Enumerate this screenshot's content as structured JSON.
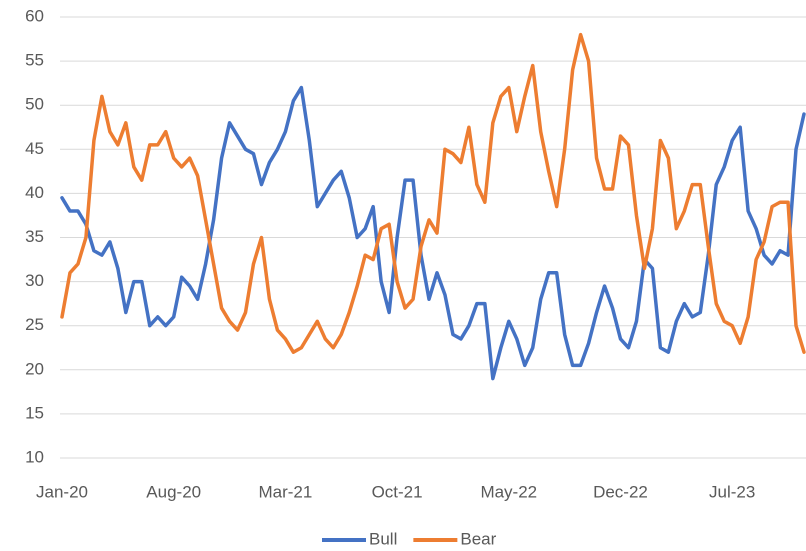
{
  "chart_data": {
    "type": "line",
    "categories": [
      "Jan-20",
      null,
      null,
      null,
      null,
      null,
      null,
      null,
      null,
      null,
      null,
      null,
      null,
      null,
      "Aug-20",
      null,
      null,
      null,
      null,
      null,
      null,
      null,
      null,
      null,
      null,
      null,
      null,
      null,
      "Mar-21",
      null,
      null,
      null,
      null,
      null,
      null,
      null,
      null,
      null,
      null,
      null,
      null,
      null,
      "Oct-21",
      null,
      null,
      null,
      null,
      null,
      null,
      null,
      null,
      null,
      null,
      null,
      null,
      null,
      "May-22",
      null,
      null,
      null,
      null,
      null,
      null,
      null,
      null,
      null,
      null,
      null,
      null,
      null,
      "Dec-22",
      null,
      null,
      null,
      null,
      null,
      null,
      null,
      null,
      null,
      null,
      null,
      null,
      null,
      "Jul-23",
      null,
      null,
      null,
      null,
      null,
      null,
      null,
      null,
      null
    ],
    "series": [
      {
        "name": "Bull",
        "color": "#4472c4",
        "values": [
          39.5,
          38,
          38,
          36.5,
          33.5,
          33,
          34.5,
          31.5,
          26.5,
          30,
          30,
          25,
          26,
          25,
          26,
          30.5,
          29.5,
          28,
          32,
          37,
          44,
          48,
          46.5,
          45,
          44.5,
          41,
          43.5,
          45,
          47,
          50.5,
          52,
          46,
          38.5,
          40,
          41.5,
          42.5,
          39.5,
          35,
          36,
          38.5,
          30,
          26.5,
          35,
          41.5,
          41.5,
          33,
          28,
          31,
          28.5,
          24,
          23.5,
          25,
          27.5,
          27.5,
          19,
          22.5,
          25.5,
          23.5,
          20.5,
          22.5,
          28,
          31,
          31,
          24,
          20.5,
          20.5,
          23,
          26.5,
          29.5,
          27,
          23.5,
          22.5,
          25.5,
          32.5,
          31.5,
          22.5,
          22,
          25.5,
          27.5,
          26,
          26.5,
          33,
          41,
          43,
          46,
          47.5,
          38,
          36,
          33,
          32,
          33.5,
          33,
          45,
          49
        ]
      },
      {
        "name": "Bear",
        "color": "#ed7d31",
        "values": [
          26,
          31,
          32,
          35,
          46,
          51,
          47,
          45.5,
          48,
          43,
          41.5,
          45.5,
          45.5,
          47,
          44,
          43,
          44,
          42,
          37,
          32,
          27,
          25.5,
          24.5,
          26.5,
          32,
          35,
          28,
          24.5,
          23.5,
          22,
          22.5,
          24,
          25.5,
          23.5,
          22.5,
          24,
          26.5,
          29.5,
          33,
          32.5,
          36,
          36.5,
          30,
          27,
          28,
          34,
          37,
          35.5,
          45,
          44.5,
          43.5,
          47.5,
          41,
          39,
          48,
          51,
          52,
          47,
          51,
          54.5,
          47,
          42.5,
          38.5,
          45,
          54,
          58,
          55,
          44,
          40.5,
          40.5,
          46.5,
          45.5,
          37.5,
          31.5,
          36,
          46,
          44,
          36,
          38,
          41,
          41,
          34,
          27.5,
          25.5,
          25,
          23,
          26,
          32.5,
          34.5,
          38.5,
          39,
          39,
          25,
          22
        ]
      }
    ],
    "ylim": [
      10,
      60
    ],
    "yticks": [
      10,
      15,
      20,
      25,
      30,
      35,
      40,
      45,
      50,
      55,
      60
    ],
    "grid": true,
    "legend": "bottom"
  }
}
